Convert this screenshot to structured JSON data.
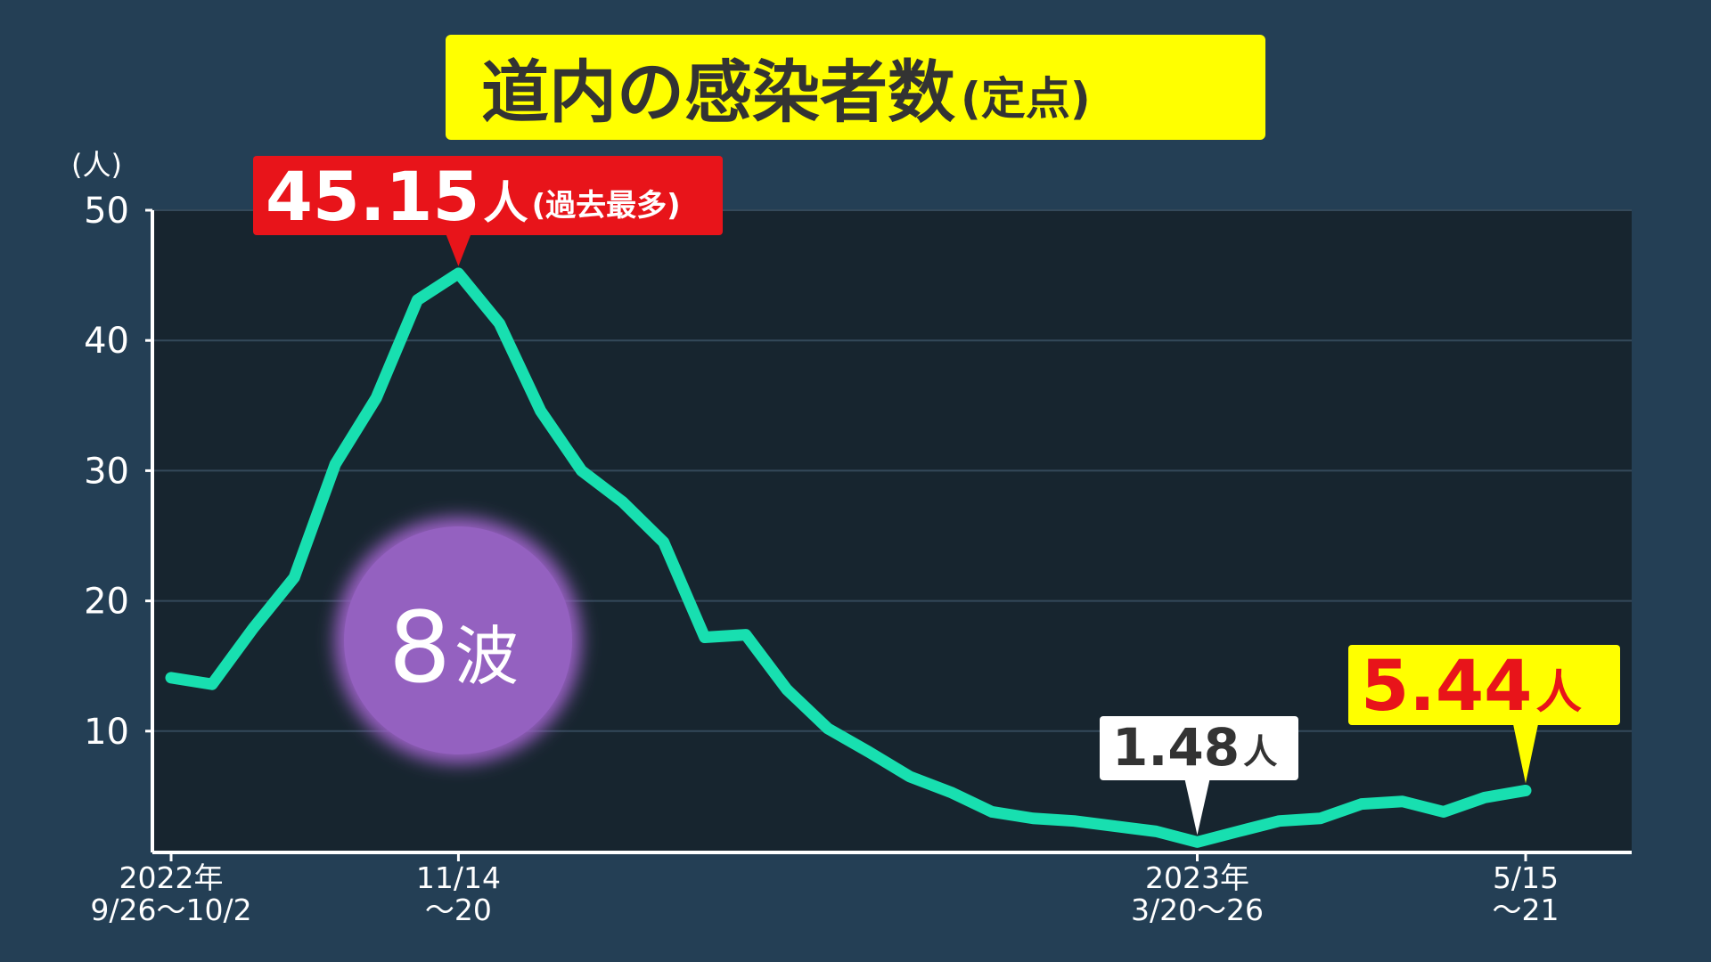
{
  "chart_data": {
    "type": "line",
    "title": "道内の感染者数",
    "title_note": "(定点)",
    "y_unit_label": "(人)",
    "categories": [
      [
        "2022年",
        "9/26〜10/2"
      ],
      null,
      null,
      null,
      null,
      null,
      null,
      [
        "11/14",
        "〜20"
      ],
      null,
      null,
      null,
      null,
      null,
      null,
      null,
      null,
      null,
      null,
      null,
      null,
      null,
      null,
      null,
      null,
      null,
      [
        "2023年",
        "3/20〜26"
      ],
      null,
      null,
      null,
      null,
      null,
      null,
      null,
      [
        "5/15",
        "〜21"
      ]
    ],
    "series": [
      {
        "color": "#18dfb0",
        "values": [
          14.1,
          13.6,
          17.9,
          21.8,
          30.5,
          35.6,
          43.1,
          45.15,
          41.3,
          34.6,
          30.0,
          27.6,
          24.5,
          17.2,
          17.4,
          13.2,
          10.2,
          8.4,
          6.5,
          5.3,
          3.8,
          3.3,
          3.1,
          2.7,
          2.3,
          1.48,
          2.3,
          3.1,
          3.3,
          4.4,
          4.6,
          3.8,
          4.9,
          5.44
        ]
      }
    ],
    "ylim": [
      0,
      50
    ],
    "yticks": [
      10,
      20,
      30,
      40,
      50
    ],
    "grid": true,
    "annotations": {
      "unit": "人",
      "peak_note": "(過去最多)",
      "wave_number": "8",
      "wave_text": "波"
    }
  }
}
